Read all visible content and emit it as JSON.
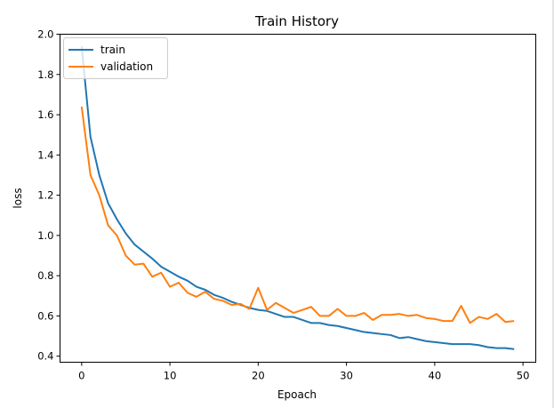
{
  "chart_data": {
    "type": "line",
    "title": "Train History",
    "xlabel": "Epoach",
    "ylabel": "loss",
    "xlim": [
      -2.45,
      51.45
    ],
    "ylim": [
      0.37,
      2.0
    ],
    "xticks": [
      0,
      10,
      20,
      30,
      40,
      50
    ],
    "yticks": [
      0.4,
      0.6,
      0.8,
      1.0,
      1.2,
      1.4,
      1.6,
      1.8,
      2.0
    ],
    "ytick_labels": [
      "0.4",
      "0.6",
      "0.8",
      "1.0",
      "1.2",
      "1.4",
      "1.6",
      "1.8",
      "2.0"
    ],
    "grid": false,
    "legend_position": "top-left",
    "x": [
      0,
      1,
      2,
      3,
      4,
      5,
      6,
      7,
      8,
      9,
      10,
      11,
      12,
      13,
      14,
      15,
      16,
      17,
      18,
      19,
      20,
      21,
      22,
      23,
      24,
      25,
      26,
      27,
      28,
      29,
      30,
      31,
      32,
      33,
      34,
      35,
      36,
      37,
      38,
      39,
      40,
      41,
      42,
      43,
      44,
      45,
      46,
      47,
      48,
      49
    ],
    "series": [
      {
        "name": "train",
        "color": "#1f77b4",
        "values": [
          1.94,
          1.49,
          1.3,
          1.16,
          1.08,
          1.01,
          0.955,
          0.92,
          0.885,
          0.845,
          0.82,
          0.795,
          0.775,
          0.745,
          0.73,
          0.705,
          0.69,
          0.67,
          0.655,
          0.64,
          0.63,
          0.625,
          0.61,
          0.595,
          0.595,
          0.58,
          0.565,
          0.565,
          0.555,
          0.55,
          0.54,
          0.53,
          0.52,
          0.515,
          0.51,
          0.505,
          0.49,
          0.495,
          0.485,
          0.475,
          0.47,
          0.465,
          0.46,
          0.46,
          0.46,
          0.455,
          0.445,
          0.44,
          0.44,
          0.435
        ]
      },
      {
        "name": "validation",
        "color": "#ff7f0e",
        "values": [
          1.64,
          1.3,
          1.2,
          1.05,
          1.0,
          0.9,
          0.855,
          0.86,
          0.795,
          0.815,
          0.745,
          0.765,
          0.715,
          0.695,
          0.72,
          0.685,
          0.675,
          0.655,
          0.66,
          0.635,
          0.74,
          0.63,
          0.665,
          0.64,
          0.615,
          0.63,
          0.645,
          0.6,
          0.6,
          0.635,
          0.6,
          0.6,
          0.615,
          0.58,
          0.605,
          0.605,
          0.61,
          0.6,
          0.605,
          0.59,
          0.585,
          0.575,
          0.575,
          0.65,
          0.565,
          0.595,
          0.585,
          0.61,
          0.57,
          0.575
        ]
      }
    ]
  }
}
